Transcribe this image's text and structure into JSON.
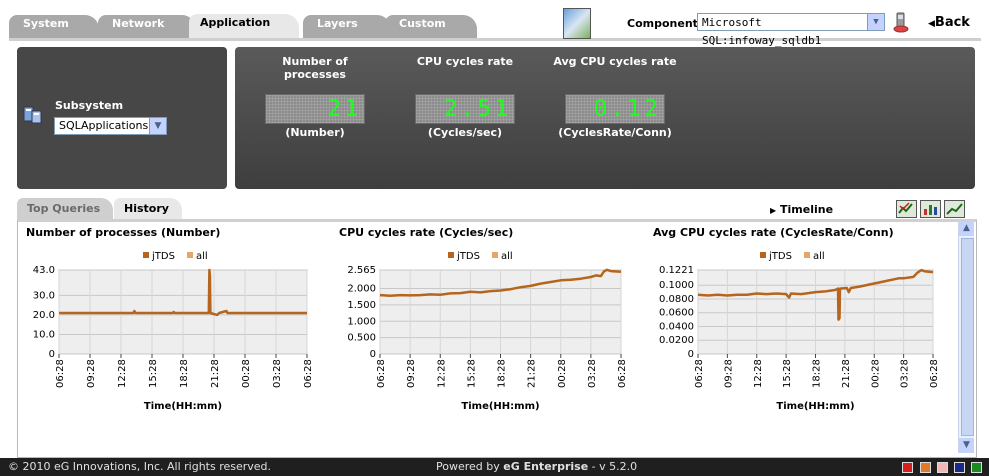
{
  "nav": {
    "tabs": [
      {
        "label": "System",
        "active": false
      },
      {
        "label": "Network",
        "active": false
      },
      {
        "label": "Application",
        "active": true
      },
      {
        "label": "Layers",
        "active": false
      },
      {
        "label": "Custom",
        "active": false
      }
    ]
  },
  "header": {
    "component_label": "Component",
    "component_value": "Microsoft SQL:infoway_sqldb1",
    "back_label": "Back"
  },
  "subsystem": {
    "label": "Subsystem",
    "value": "SQLApplications"
  },
  "metrics": [
    {
      "title": "Number of processes",
      "display": "21",
      "unit": "(Number)"
    },
    {
      "title": "CPU cycles rate",
      "display": "2.51",
      "unit": "(Cycles/sec)"
    },
    {
      "title": "Avg CPU cycles rate",
      "display": "0.12",
      "unit": "(CyclesRate/Conn)"
    }
  ],
  "subtabs": [
    {
      "label": "Top Queries",
      "active": false
    },
    {
      "label": "History",
      "active": true
    }
  ],
  "timeline_label": "Timeline",
  "icons": {
    "toolbar": [
      "chart-check-icon",
      "bar-chart-icon",
      "line-chart-icon"
    ],
    "scroll": [
      "chevron-up-icon",
      "chevron-down-icon"
    ]
  },
  "colors": {
    "series_jtds": "#b5651d",
    "series_all": "#e4a66a",
    "panel": "#474747",
    "lcd_text": "#19ff19"
  },
  "chart_data": [
    {
      "type": "line",
      "title": "Number of processes (Number)",
      "xlabel": "Time(HH:mm)",
      "ylabel": "",
      "ylim": [
        0,
        43
      ],
      "yticks": [
        "43.0",
        "30.0",
        "20.0",
        "10.0",
        "0"
      ],
      "ytick_values": [
        43,
        30,
        20,
        10,
        0
      ],
      "xticks": [
        "06:28",
        "09:28",
        "12:28",
        "15:28",
        "18:28",
        "21:28",
        "00:28",
        "03:28",
        "06:28"
      ],
      "legend": [
        "jTDS",
        "all"
      ],
      "grid": true,
      "series": [
        {
          "name": "jTDS",
          "points": [
            [
              0,
              21
            ],
            [
              2.0,
              21
            ],
            [
              4.0,
              21
            ],
            [
              6.0,
              21
            ],
            [
              7.2,
              21
            ],
            [
              7.3,
              22
            ],
            [
              7.4,
              21
            ],
            [
              10.5,
              21
            ],
            [
              11.0,
              21
            ],
            [
              11.1,
              21.5
            ],
            [
              11.2,
              21
            ],
            [
              14.0,
              21
            ],
            [
              14.5,
              21
            ],
            [
              14.55,
              43
            ],
            [
              14.6,
              40
            ],
            [
              14.65,
              21
            ],
            [
              15.3,
              20
            ],
            [
              15.5,
              21
            ],
            [
              16.2,
              22
            ],
            [
              16.3,
              21
            ],
            [
              24,
              21
            ]
          ]
        },
        {
          "name": "all",
          "points": []
        }
      ]
    },
    {
      "type": "line",
      "title": "CPU cycles rate (Cycles/sec)",
      "xlabel": "Time(HH:mm)",
      "ylabel": "",
      "ylim": [
        0,
        2.565
      ],
      "yticks": [
        "2.565",
        "2.000",
        "1.500",
        "1.000",
        "0.500",
        "0"
      ],
      "ytick_values": [
        2.565,
        2.0,
        1.5,
        1.0,
        0.5,
        0
      ],
      "xticks": [
        "06:28",
        "09:28",
        "12:28",
        "15:28",
        "18:28",
        "21:28",
        "00:28",
        "03:28",
        "06:28"
      ],
      "legend": [
        "jTDS",
        "all"
      ],
      "grid": true,
      "series": [
        {
          "name": "jTDS",
          "points": [
            [
              0,
              1.8
            ],
            [
              1.0,
              1.78
            ],
            [
              2.0,
              1.8
            ],
            [
              3.0,
              1.79
            ],
            [
              4.0,
              1.8
            ],
            [
              5.0,
              1.82
            ],
            [
              6.0,
              1.81
            ],
            [
              7.0,
              1.85
            ],
            [
              8.0,
              1.86
            ],
            [
              9.0,
              1.9
            ],
            [
              10.0,
              1.88
            ],
            [
              11.0,
              1.92
            ],
            [
              12.0,
              1.94
            ],
            [
              13.0,
              1.98
            ],
            [
              14.0,
              2.04
            ],
            [
              15.0,
              2.08
            ],
            [
              16.0,
              2.15
            ],
            [
              17.0,
              2.2
            ],
            [
              18.0,
              2.25
            ],
            [
              19.0,
              2.27
            ],
            [
              20.0,
              2.3
            ],
            [
              21.0,
              2.35
            ],
            [
              21.5,
              2.4
            ],
            [
              22.0,
              2.38
            ],
            [
              22.3,
              2.52
            ],
            [
              22.6,
              2.57
            ],
            [
              23.0,
              2.53
            ],
            [
              24,
              2.51
            ]
          ]
        },
        {
          "name": "all",
          "points": []
        }
      ]
    },
    {
      "type": "line",
      "title": "Avg CPU cycles rate (CyclesRate/Conn)",
      "xlabel": "Time(HH:mm)",
      "ylabel": "",
      "ylim": [
        0,
        0.1221
      ],
      "yticks": [
        "0.1221",
        "0.1000",
        "0.0800",
        "0.0600",
        "0.0400",
        "0.0200",
        "0"
      ],
      "ytick_values": [
        0.1221,
        0.1,
        0.08,
        0.06,
        0.04,
        0.02,
        0
      ],
      "xticks": [
        "06:28",
        "09:28",
        "12:28",
        "15:28",
        "18:28",
        "21:28",
        "00:28",
        "03:28",
        "06:28"
      ],
      "legend": [
        "jTDS",
        "all"
      ],
      "grid": true,
      "series": [
        {
          "name": "jTDS",
          "points": [
            [
              0,
              0.086
            ],
            [
              1.0,
              0.085
            ],
            [
              2.0,
              0.086
            ],
            [
              3.0,
              0.085
            ],
            [
              4.0,
              0.086
            ],
            [
              5.0,
              0.086
            ],
            [
              6.0,
              0.088
            ],
            [
              7.0,
              0.087
            ],
            [
              8.0,
              0.088
            ],
            [
              9.0,
              0.087
            ],
            [
              9.3,
              0.082
            ],
            [
              9.5,
              0.088
            ],
            [
              10.5,
              0.087
            ],
            [
              11.0,
              0.088
            ],
            [
              12.0,
              0.09
            ],
            [
              13.0,
              0.091
            ],
            [
              14.0,
              0.093
            ],
            [
              14.3,
              0.095
            ],
            [
              14.35,
              0.05
            ],
            [
              14.45,
              0.052
            ],
            [
              14.5,
              0.095
            ],
            [
              15.2,
              0.096
            ],
            [
              15.4,
              0.09
            ],
            [
              15.6,
              0.096
            ],
            [
              16.5,
              0.098
            ],
            [
              17.5,
              0.101
            ],
            [
              18.5,
              0.104
            ],
            [
              19.5,
              0.107
            ],
            [
              20.5,
              0.11
            ],
            [
              21.0,
              0.11
            ],
            [
              22.0,
              0.112
            ],
            [
              22.4,
              0.118
            ],
            [
              22.8,
              0.122
            ],
            [
              23.2,
              0.12
            ],
            [
              24,
              0.119
            ]
          ]
        },
        {
          "name": "all",
          "points": []
        }
      ]
    }
  ],
  "footer": {
    "copyright": "© 2010 eG Innovations, Inc. All rights reserved.",
    "powered_prefix": "Powered by",
    "product": "eG Enterprise",
    "version": "- v 5.2.0"
  },
  "footer_swatches": [
    "#d42020",
    "#e07a2b",
    "#f2b8b8",
    "#1a2a8a",
    "#1c8a22"
  ]
}
